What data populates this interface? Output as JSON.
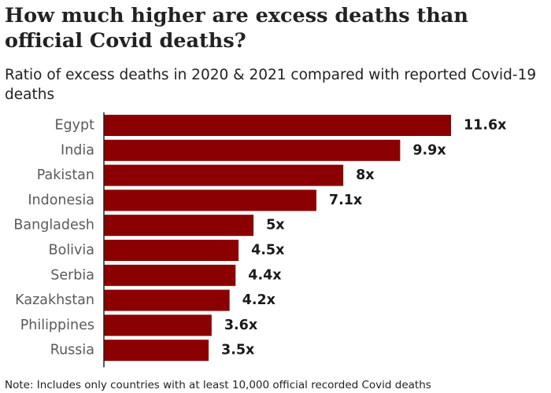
{
  "chart_data": {
    "type": "bar",
    "orientation": "horizontal",
    "title": "How much higher are excess deaths than official Covid deaths?",
    "subtitle": "Ratio of excess deaths in 2020 & 2021 compared with reported Covid-19 deaths",
    "categories": [
      "Egypt",
      "India",
      "Pakistan",
      "Indonesia",
      "Bangladesh",
      "Bolivia",
      "Serbia",
      "Kazakhstan",
      "Philippines",
      "Russia"
    ],
    "values": [
      11.6,
      9.9,
      8,
      7.1,
      5,
      4.5,
      4.4,
      4.2,
      3.6,
      3.5
    ],
    "value_labels": [
      "11.6x",
      "9.9x",
      "8x",
      "7.1x",
      "5x",
      "4.5x",
      "4.4x",
      "4.2x",
      "3.6x",
      "3.5x"
    ],
    "xlim": [
      0,
      11.6
    ],
    "xlabel": "",
    "ylabel": "",
    "grid": false,
    "bar_color": "#8b0000",
    "note": "Note: Includes only countries with at least 10,000 official recorded Covid deaths"
  }
}
